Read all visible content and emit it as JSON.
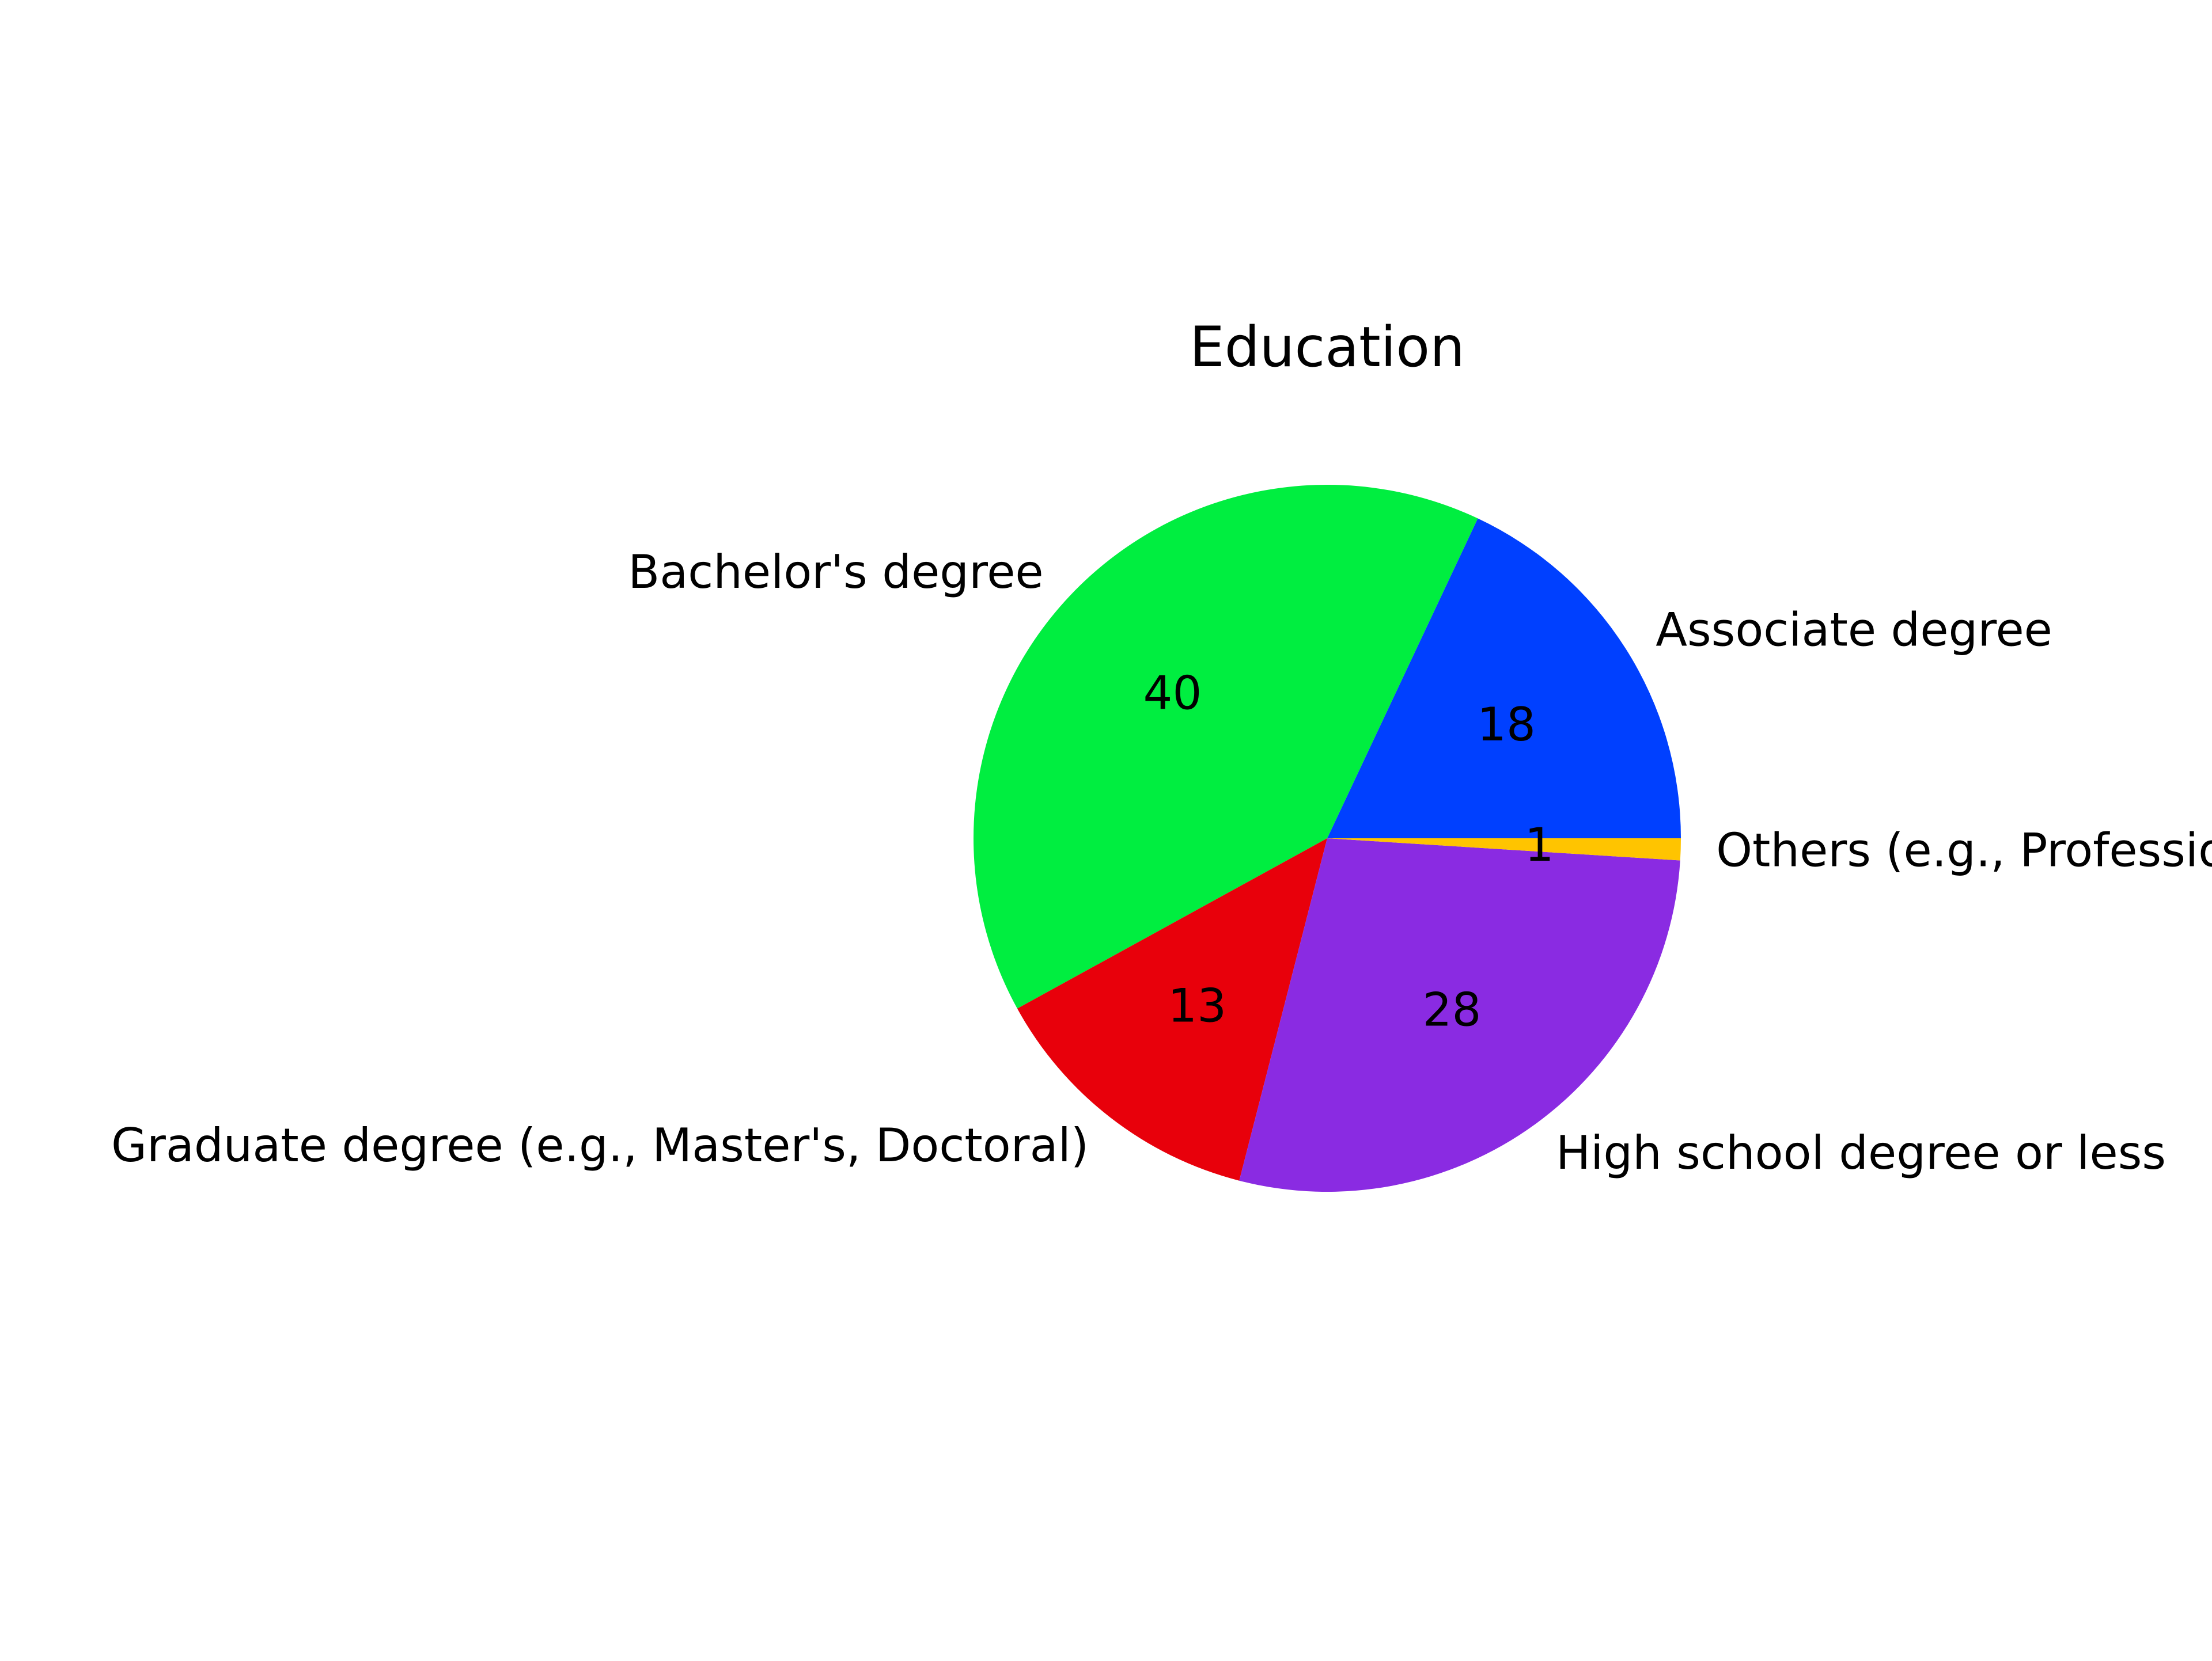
{
  "chart_data": {
    "type": "pie",
    "title": "Education",
    "slices": [
      {
        "label": "Associate degree",
        "value": 18,
        "display": "18",
        "color": "#0040FF"
      },
      {
        "label": "Bachelor's degree",
        "value": 40,
        "display": "40",
        "color": "#00EE40"
      },
      {
        "label": "Graduate degree (e.g., Master's, Doctoral)",
        "value": 13,
        "display": "13",
        "color": "#E8000B"
      },
      {
        "label": "High school degree or less",
        "value": 28,
        "display": "28",
        "color": "#8A2BE2"
      },
      {
        "label": "Others (e.g., Professional degree)",
        "value": 1,
        "display": "1",
        "color": "#FFC400"
      }
    ],
    "start_angle_deg": 0,
    "direction": "counterclockwise",
    "legend": "none"
  }
}
